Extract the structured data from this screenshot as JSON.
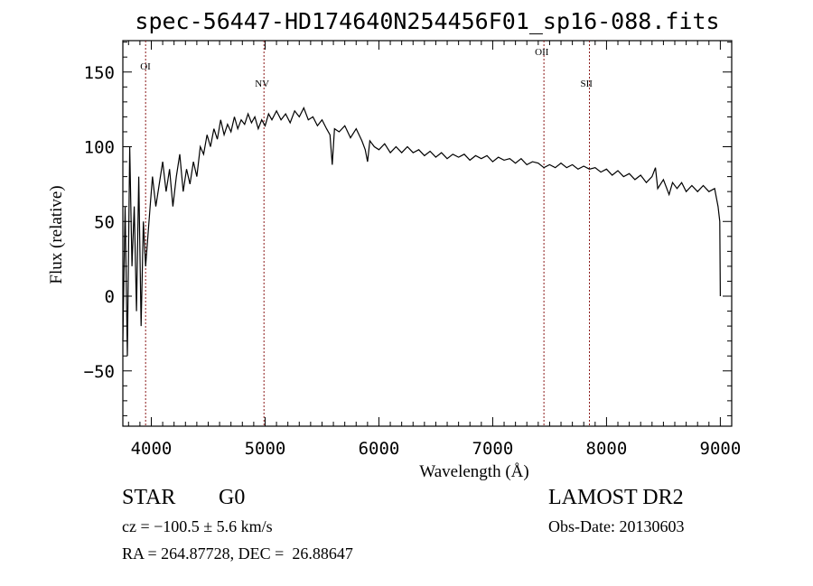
{
  "chart_data": {
    "type": "line",
    "title": "spec-56447-HD174640N254456F01_sp16-088.fits",
    "xlabel": "Wavelength (Å)",
    "ylabel": "Flux (relative)",
    "xlim": [
      3750,
      9100
    ],
    "ylim": [
      -87,
      171
    ],
    "xticks": [
      4000,
      5000,
      6000,
      7000,
      8000,
      9000
    ],
    "yticks": [
      -50,
      0,
      50,
      100,
      150
    ],
    "grid": false,
    "line_markers": [
      {
        "label": "OI",
        "x": 3950
      },
      {
        "label": "NV",
        "x": 4990
      },
      {
        "label": "OII",
        "x": 7450
      },
      {
        "label": "SII",
        "x": 7850
      }
    ],
    "series": [
      {
        "name": "flux",
        "x": [
          3750,
          3770,
          3790,
          3810,
          3830,
          3850,
          3870,
          3890,
          3910,
          3930,
          3950,
          3970,
          3990,
          4010,
          4040,
          4070,
          4100,
          4130,
          4160,
          4190,
          4220,
          4250,
          4280,
          4310,
          4340,
          4370,
          4400,
          4430,
          4460,
          4490,
          4520,
          4550,
          4580,
          4610,
          4640,
          4670,
          4700,
          4730,
          4760,
          4790,
          4820,
          4850,
          4880,
          4910,
          4940,
          4970,
          5000,
          5030,
          5060,
          5100,
          5140,
          5180,
          5220,
          5260,
          5300,
          5340,
          5380,
          5420,
          5460,
          5500,
          5540,
          5570,
          5590,
          5610,
          5650,
          5700,
          5750,
          5800,
          5850,
          5880,
          5900,
          5920,
          5960,
          6000,
          6050,
          6100,
          6150,
          6200,
          6250,
          6300,
          6350,
          6400,
          6450,
          6500,
          6550,
          6600,
          6650,
          6700,
          6750,
          6800,
          6850,
          6900,
          6950,
          7000,
          7050,
          7100,
          7150,
          7200,
          7250,
          7300,
          7350,
          7400,
          7450,
          7500,
          7550,
          7600,
          7650,
          7700,
          7750,
          7800,
          7850,
          7900,
          7950,
          8000,
          8050,
          8100,
          8150,
          8200,
          8250,
          8300,
          8350,
          8400,
          8430,
          8450,
          8500,
          8550,
          8580,
          8620,
          8660,
          8700,
          8750,
          8800,
          8850,
          8900,
          8950,
          8980,
          8995,
          9000
        ],
        "y": [
          -30,
          60,
          -40,
          100,
          20,
          60,
          -10,
          80,
          -20,
          50,
          20,
          40,
          60,
          80,
          60,
          75,
          90,
          70,
          85,
          60,
          80,
          95,
          70,
          85,
          75,
          90,
          80,
          100,
          95,
          108,
          100,
          112,
          105,
          118,
          108,
          115,
          110,
          120,
          112,
          118,
          115,
          122,
          116,
          120,
          112,
          118,
          114,
          122,
          118,
          124,
          118,
          122,
          116,
          124,
          120,
          126,
          118,
          120,
          114,
          118,
          112,
          108,
          88,
          112,
          110,
          114,
          106,
          112,
          104,
          98,
          90,
          104,
          100,
          98,
          102,
          96,
          100,
          96,
          100,
          96,
          98,
          94,
          97,
          93,
          96,
          92,
          95,
          93,
          95,
          91,
          94,
          92,
          94,
          90,
          93,
          91,
          92,
          89,
          92,
          88,
          90,
          89,
          86,
          88,
          86,
          89,
          86,
          88,
          85,
          87,
          85,
          86,
          83,
          85,
          81,
          84,
          80,
          82,
          78,
          81,
          76,
          80,
          86,
          72,
          78,
          68,
          76,
          72,
          76,
          70,
          74,
          70,
          74,
          70,
          72,
          60,
          50,
          0
        ]
      }
    ]
  },
  "info": {
    "object_class": "STAR",
    "subclass": "G0",
    "survey": "LAMOST DR2",
    "redshift": "cz = −100.5 ± 5.6 km/s",
    "obs_date": "Obs-Date: 20130603",
    "coords": "RA = 264.87728, DEC =  26.88647"
  }
}
